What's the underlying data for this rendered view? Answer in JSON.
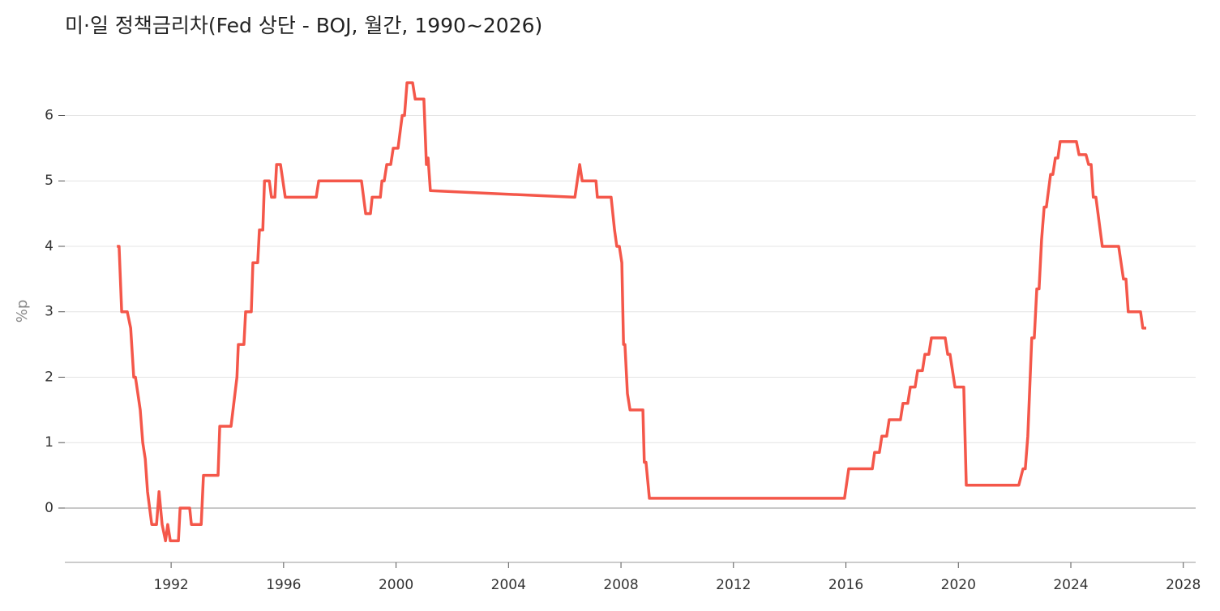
{
  "chart_data": {
    "type": "line",
    "title": "미·일 정책금리차(Fed 상단 - BOJ, 월간, 1990~2026)",
    "y_label": "%p",
    "color": "#f4574a",
    "grid": true,
    "xlim": [
      1988.22,
      2028.44
    ],
    "xticks": [
      1992,
      1996,
      2000,
      2004,
      2008,
      2012,
      2016,
      2020,
      2024,
      2028
    ],
    "ylim": [
      -0.83,
      6.65
    ],
    "yticks": [
      0,
      1,
      2,
      3,
      4,
      5,
      6
    ],
    "x": [
      1990.07,
      1990.15,
      1990.24,
      1990.44,
      1990.56,
      1990.67,
      1990.73,
      1990.9,
      1990.99,
      1991.08,
      1991.16,
      1991.31,
      1991.48,
      1991.57,
      1991.68,
      1991.8,
      1991.88,
      1991.97,
      1992.26,
      1992.32,
      1992.66,
      1992.72,
      1993.07,
      1993.15,
      1993.67,
      1993.73,
      1994.13,
      1994.34,
      1994.39,
      1994.59,
      1994.65,
      1994.85,
      1994.91,
      1995.08,
      1995.14,
      1995.26,
      1995.32,
      1995.49,
      1995.57,
      1995.69,
      1995.75,
      1995.89,
      1996.06,
      1997.16,
      1997.25,
      1998.77,
      1998.92,
      1999.09,
      1999.15,
      1999.44,
      1999.5,
      1999.58,
      1999.67,
      1999.81,
      1999.9,
      2000.07,
      2000.22,
      2000.3,
      2000.39,
      2000.59,
      2000.68,
      2000.99,
      2001.08,
      2001.14,
      2001.22,
      2006.36,
      2006.53,
      2006.62,
      2007.11,
      2007.16,
      2007.65,
      2007.77,
      2007.85,
      2007.94,
      2008.03,
      2008.09,
      2008.14,
      2008.23,
      2008.32,
      2008.78,
      2008.83,
      2008.89,
      2009.01,
      2015.95,
      2016.1,
      2016.94,
      2017.02,
      2017.19,
      2017.28,
      2017.45,
      2017.54,
      2017.94,
      2018.03,
      2018.2,
      2018.29,
      2018.46,
      2018.55,
      2018.72,
      2018.81,
      2018.95,
      2019.04,
      2019.53,
      2019.62,
      2019.7,
      2019.88,
      2020.19,
      2020.28,
      2022.15,
      2022.3,
      2022.38,
      2022.47,
      2022.61,
      2022.7,
      2022.79,
      2022.87,
      2022.96,
      2023.05,
      2023.13,
      2023.28,
      2023.36,
      2023.45,
      2023.54,
      2023.62,
      2024.2,
      2024.29,
      2024.54,
      2024.63,
      2024.72,
      2024.8,
      2024.89,
      2025.12,
      2025.7,
      2025.87,
      2025.96,
      2026.04,
      2026.48,
      2026.56,
      2026.68
    ],
    "values": [
      4.0,
      4.0,
      3.0,
      3.0,
      2.75,
      2.0,
      2.0,
      1.5,
      1.0,
      0.75,
      0.25,
      -0.25,
      -0.25,
      0.25,
      -0.25,
      -0.5,
      -0.25,
      -0.5,
      -0.5,
      0.0,
      0.0,
      -0.25,
      -0.25,
      0.5,
      0.5,
      1.25,
      1.25,
      2.0,
      2.5,
      2.5,
      3.0,
      3.0,
      3.75,
      3.75,
      4.25,
      4.25,
      5.0,
      5.0,
      4.75,
      4.75,
      5.25,
      5.25,
      4.75,
      4.75,
      5.0,
      5.0,
      4.5,
      4.5,
      4.75,
      4.75,
      5.0,
      5.0,
      5.25,
      5.25,
      5.5,
      5.5,
      6.0,
      6.0,
      6.5,
      6.5,
      6.25,
      6.25,
      5.25,
      5.35,
      4.85,
      4.75,
      5.25,
      5.0,
      5.0,
      4.75,
      4.75,
      4.25,
      4.0,
      4.0,
      3.75,
      2.5,
      2.5,
      1.75,
      1.5,
      1.5,
      0.7,
      0.7,
      0.15,
      0.15,
      0.6,
      0.6,
      0.85,
      0.85,
      1.1,
      1.1,
      1.35,
      1.35,
      1.6,
      1.6,
      1.85,
      1.85,
      2.1,
      2.1,
      2.35,
      2.35,
      2.6,
      2.6,
      2.35,
      2.35,
      1.85,
      1.85,
      0.35,
      0.35,
      0.6,
      0.6,
      1.1,
      2.6,
      2.6,
      3.35,
      3.35,
      4.1,
      4.6,
      4.6,
      5.1,
      5.1,
      5.35,
      5.35,
      5.6,
      5.6,
      5.4,
      5.4,
      5.25,
      5.25,
      4.75,
      4.75,
      4.0,
      4.0,
      3.5,
      3.5,
      3.0,
      3.0,
      2.75,
      2.75
    ]
  }
}
